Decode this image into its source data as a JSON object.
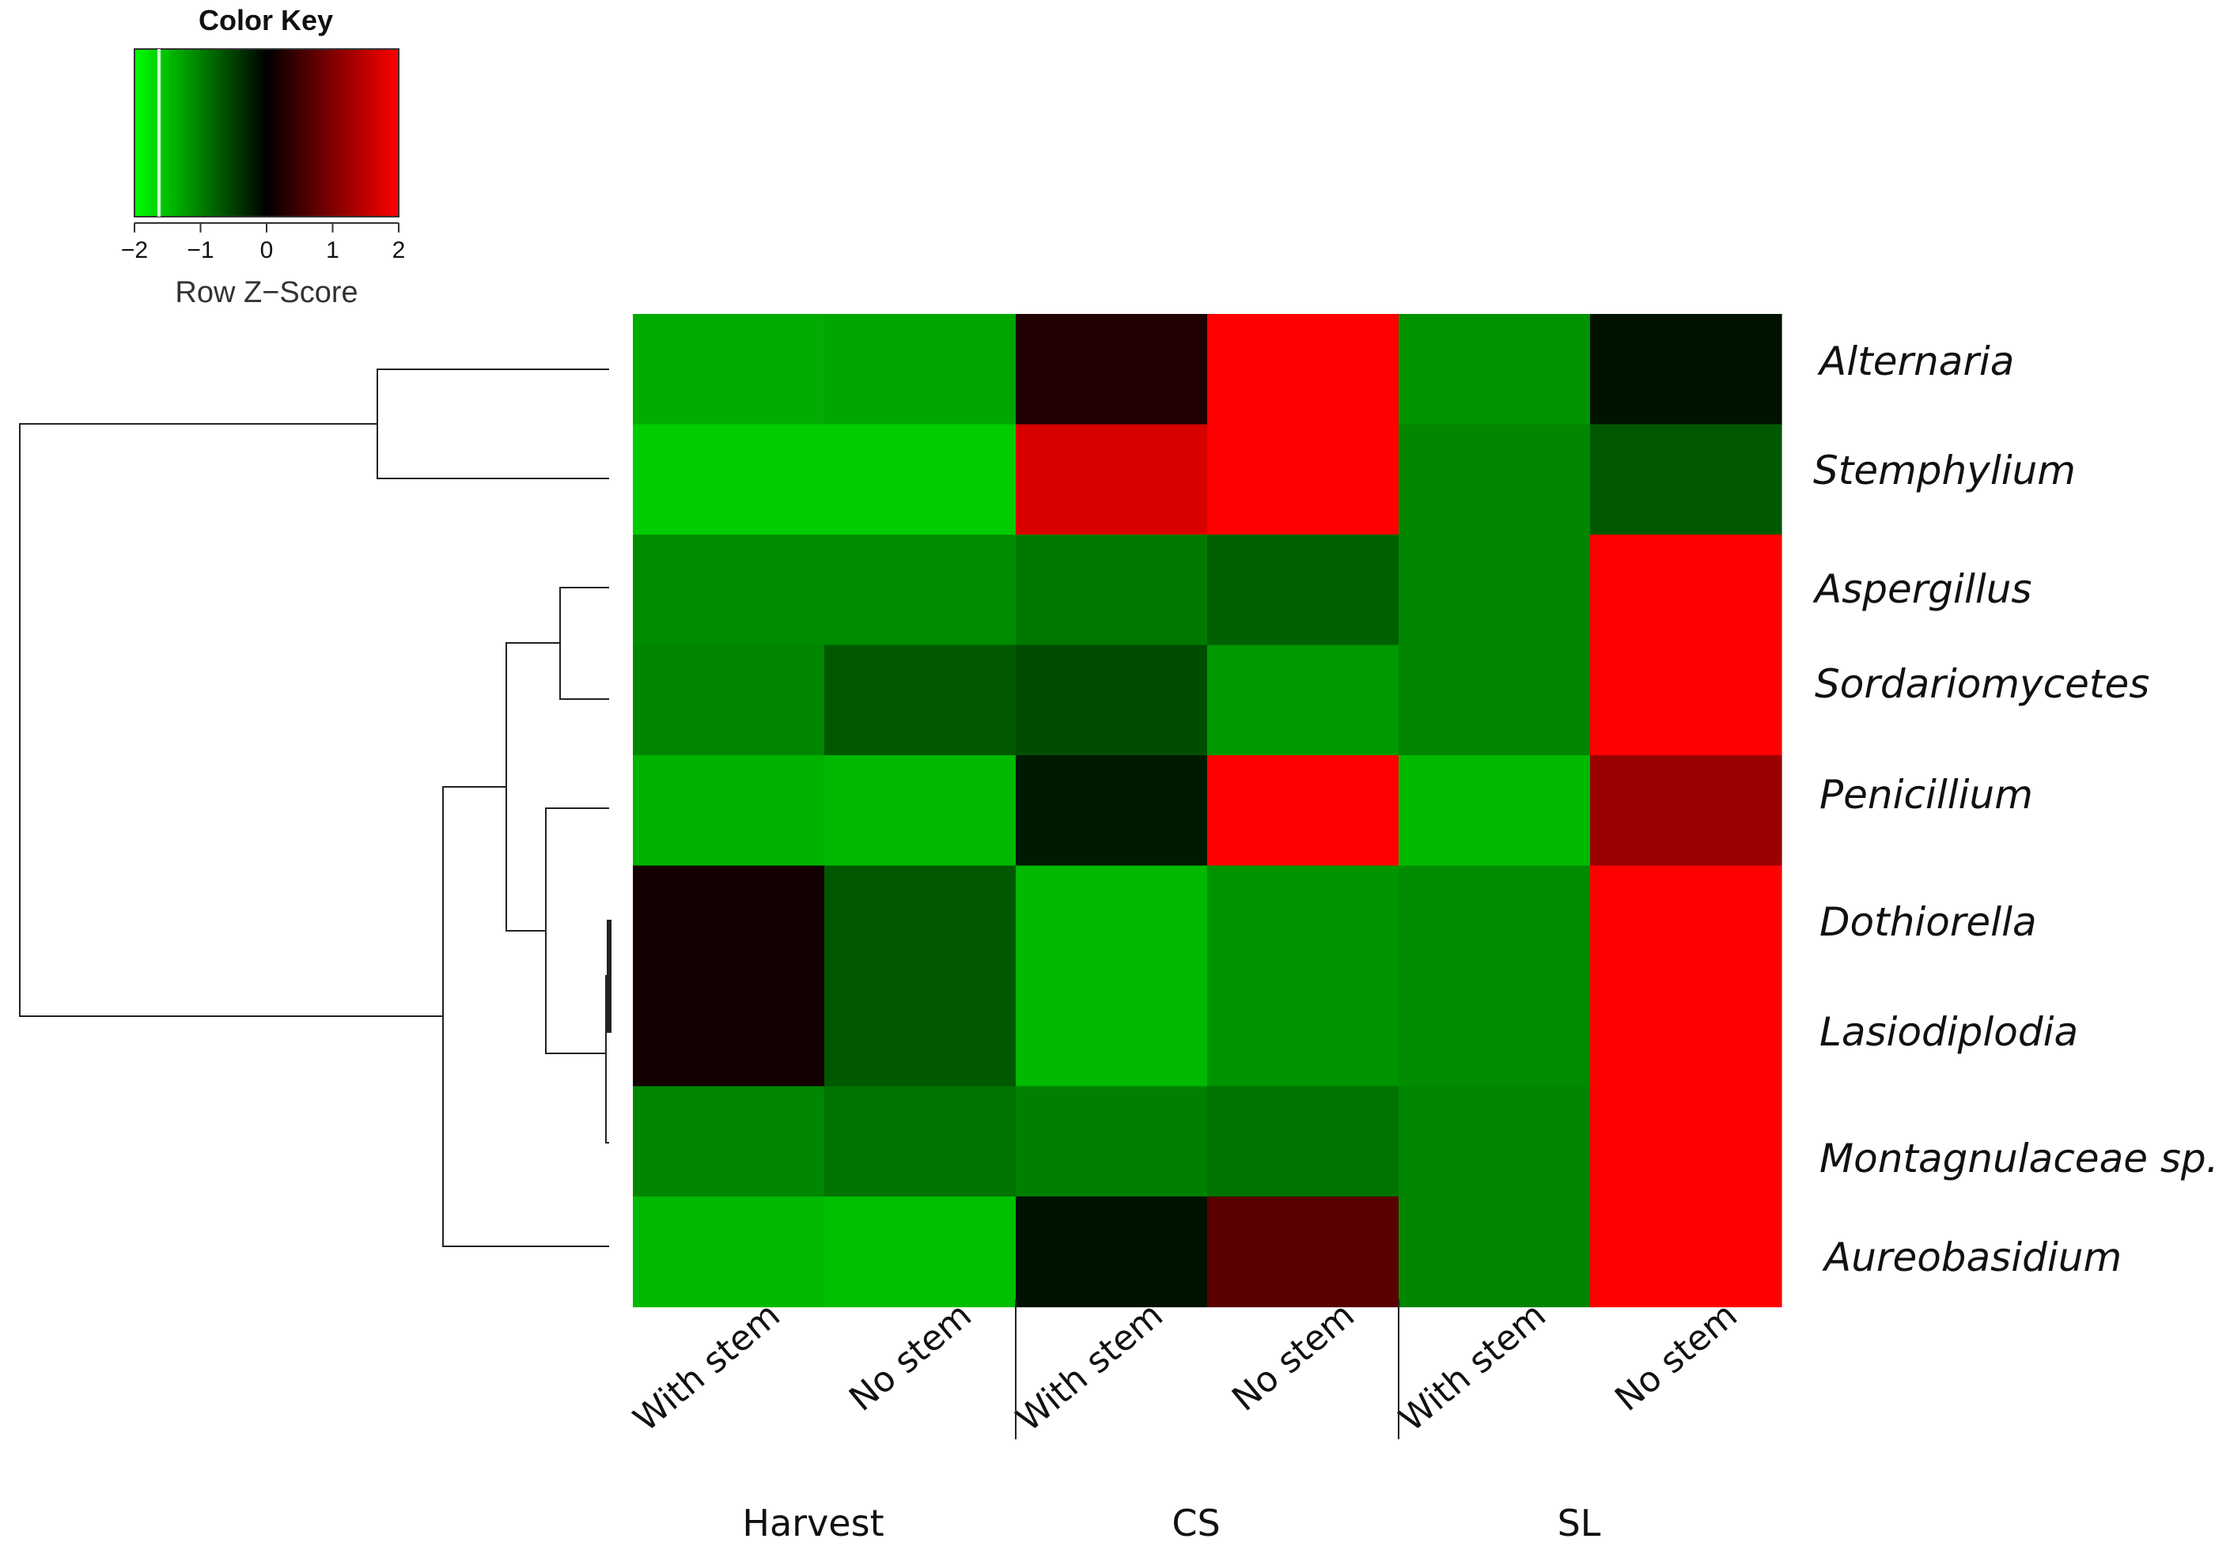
{
  "chart_data": {
    "type": "heatmap",
    "color_key": {
      "title": "Color Key",
      "axis_label": "Row Z−Score",
      "range": [
        -2,
        2
      ],
      "ticks": [
        "−2",
        "−1",
        "0",
        "1",
        "2"
      ],
      "tick_values": [
        -2,
        -1,
        0,
        1,
        2
      ],
      "colors": {
        "low": "#00ff00",
        "mid": "#000000",
        "high": "#ff0000"
      }
    },
    "rows": [
      "Alternaria",
      "Stemphylium",
      "Aspergillus",
      "Sordariomycetes",
      "Penicillium",
      "Dothiorella",
      "Lasiodiplodia",
      "Montagnulaceae sp.",
      "Aureobasidium"
    ],
    "columns": [
      "With stem",
      "No stem",
      "With stem",
      "No stem",
      "With stem",
      "No stem"
    ],
    "groups": [
      {
        "label": "Harvest",
        "span": 2
      },
      {
        "label": "CS",
        "span": 2
      },
      {
        "label": "SL",
        "span": 2
      }
    ],
    "values": [
      [
        -1.35,
        -1.3,
        0.25,
        2.0,
        -1.15,
        -0.15
      ],
      [
        -1.6,
        -1.6,
        1.7,
        2.0,
        -1.05,
        -0.7
      ],
      [
        -1.1,
        -1.1,
        -0.95,
        -0.75,
        -1.05,
        2.0
      ],
      [
        -1.05,
        -0.7,
        -0.6,
        -1.2,
        -1.05,
        2.0
      ],
      [
        -1.4,
        -1.45,
        -0.2,
        2.0,
        -1.45,
        1.2
      ],
      [
        0.15,
        -0.7,
        -1.45,
        -1.15,
        -1.1,
        2.0
      ],
      [
        0.15,
        -0.7,
        -1.45,
        -1.15,
        -1.1,
        2.0
      ],
      [
        -1.05,
        -0.9,
        -1.0,
        -0.9,
        -1.05,
        2.0
      ],
      [
        -1.45,
        -1.5,
        -0.15,
        0.7,
        -1.05,
        2.0
      ]
    ]
  }
}
